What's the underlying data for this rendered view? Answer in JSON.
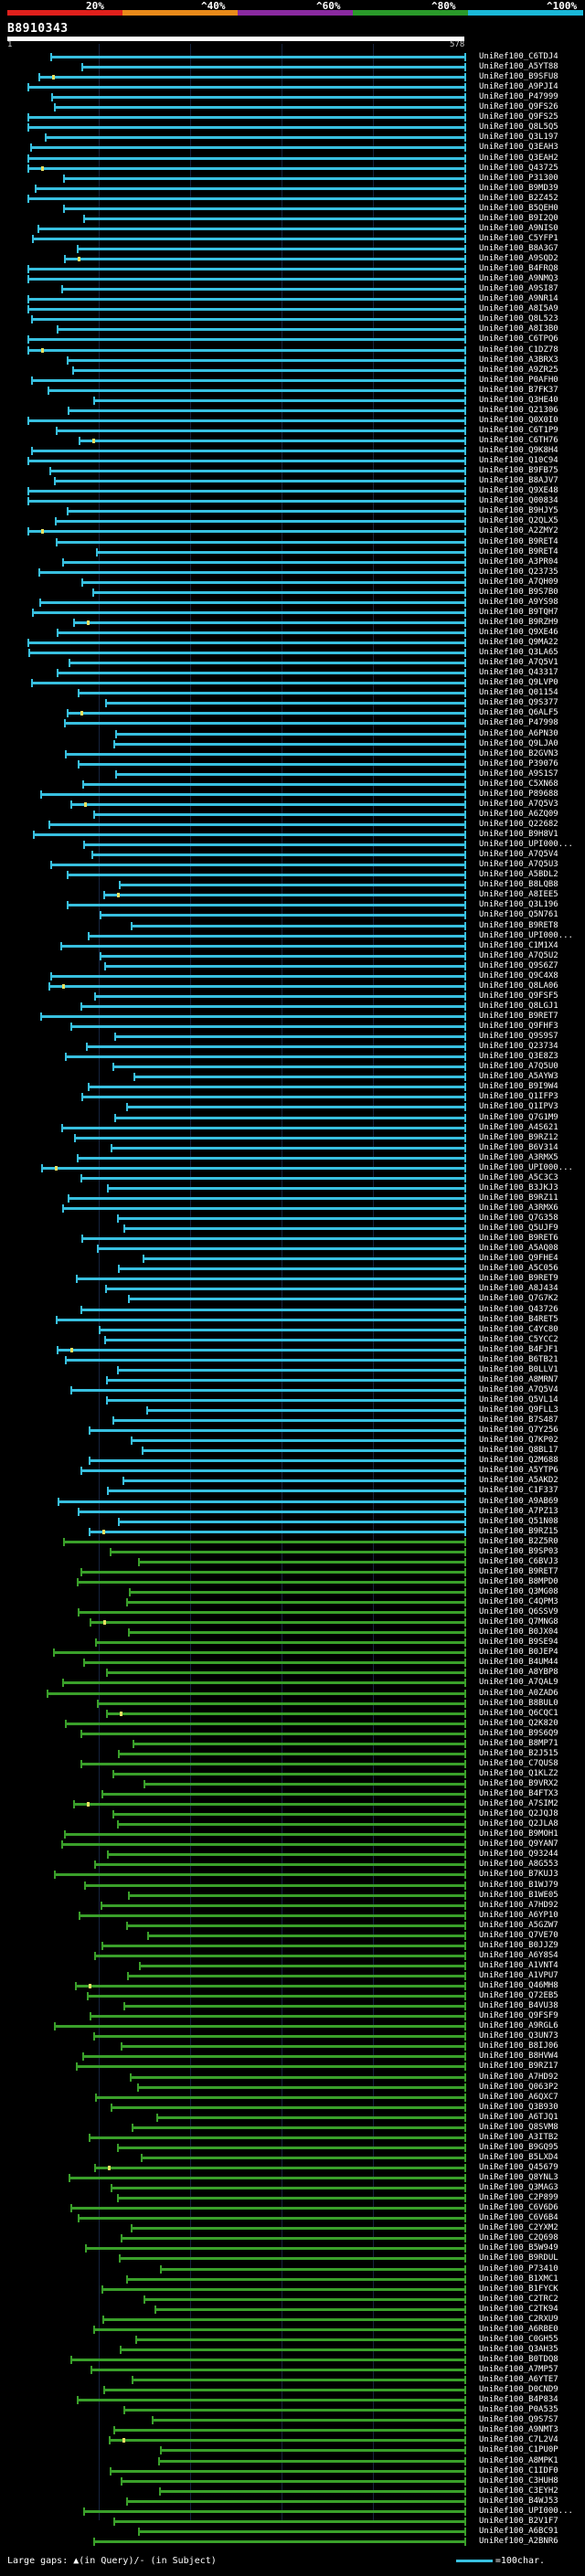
{
  "scale": {
    "ticks": [
      "20%",
      "^40%",
      "^60%",
      "^80%",
      "^100%"
    ],
    "colors": [
      "#e0201c",
      "#e88a1a",
      "#8a2aa0",
      "#2a9a2a",
      "#1ab8d8"
    ]
  },
  "query": {
    "id": "B8910343",
    "start": "1",
    "end": "578"
  },
  "colors": {
    "high": "#38c0e0",
    "mid": "#3aa02a",
    "gap": "#e8e060"
  },
  "hits": [
    "UniRef100_C6TDJ4",
    "UniRef100_A5YT88",
    "UniRef100_B9SFU8",
    "UniRef100_A9PJI4",
    "UniRef100_P47999",
    "UniRef100_Q9FS26",
    "UniRef100_Q9FS25",
    "UniRef100_Q8L5Q5",
    "UniRef100_Q3L197",
    "UniRef100_Q3EAH3",
    "UniRef100_Q3EAH2",
    "UniRef100_Q43725",
    "UniRef100_P31300",
    "UniRef100_B9MD39",
    "UniRef100_B2Z452",
    "UniRef100_B5QEH0",
    "UniRef100_B9I2Q0",
    "UniRef100_A9NIS0",
    "UniRef100_C5YFP1",
    "UniRef100_B8A3G7",
    "UniRef100_A9SQD2",
    "UniRef100_B4FRQ8",
    "UniRef100_A9NMQ3",
    "UniRef100_A9SI87",
    "UniRef100_A9NR14",
    "UniRef100_A8I5A9",
    "UniRef100_Q8L523",
    "UniRef100_A8I3B0",
    "UniRef100_C6TPQ6",
    "UniRef100_C1DZ78",
    "UniRef100_A3BRX3",
    "UniRef100_A9ZR25",
    "UniRef100_P0AFH0",
    "UniRef100_B7FK37",
    "UniRef100_Q3HE40",
    "UniRef100_Q21306",
    "UniRef100_Q0X0I0",
    "UniRef100_C6T1P9",
    "UniRef100_C6TH76",
    "UniRef100_Q9K8H4",
    "UniRef100_Q10C94",
    "UniRef100_B9FB75",
    "UniRef100_B8AJV7",
    "UniRef100_Q9XE48",
    "UniRef100_Q00834",
    "UniRef100_B9HJY5",
    "UniRef100_Q2QLX5",
    "UniRef100_A2ZMY2",
    "UniRef100_B9RET4",
    "UniRef100_B9RET4",
    "UniRef100_A3PR04",
    "UniRef100_Q23735",
    "UniRef100_A7QH09",
    "UniRef100_B9S7B0",
    "UniRef100_A9YS98",
    "UniRef100_B9TQH7",
    "UniRef100_B9RZH9",
    "UniRef100_Q9XE46",
    "UniRef100_Q9MA22",
    "UniRef100_Q3LA65",
    "UniRef100_A7Q5V1",
    "UniRef100_Q43317",
    "UniRef100_Q9LVP0",
    "UniRef100_Q01154",
    "UniRef100_Q9S377",
    "UniRef100_Q6ALF5",
    "UniRef100_P47998",
    "UniRef100_A6PN30",
    "UniRef100_Q9LJA0",
    "UniRef100_B2GVN3",
    "UniRef100_P39076",
    "UniRef100_A9S1S7",
    "UniRef100_C5XN68",
    "UniRef100_P89688",
    "UniRef100_A7Q5V3",
    "UniRef100_A6ZQ09",
    "UniRef100_Q22682",
    "UniRef100_B9H8V1",
    "UniRef100_UPI000...",
    "UniRef100_A7Q5V4",
    "UniRef100_A7Q5U3",
    "UniRef100_A5BDL2",
    "UniRef100_B8LQB8",
    "UniRef100_A8IEE5",
    "UniRef100_Q3L196",
    "UniRef100_Q5N761",
    "UniRef100_B9RET8",
    "UniRef100_UPI000...",
    "UniRef100_C1M1X4",
    "UniRef100_A7Q5U2",
    "UniRef100_Q9S6Z7",
    "UniRef100_Q9C4X8",
    "UniRef100_Q8LA06",
    "UniRef100_Q9FSF5",
    "UniRef100_Q8LGJ1",
    "UniRef100_B9RET7",
    "UniRef100_Q9FHF3",
    "UniRef100_Q9S9S7",
    "UniRef100_Q23734",
    "UniRef100_Q3E8Z3",
    "UniRef100_A7Q5U0",
    "UniRef100_A5AYW3",
    "UniRef100_B9I9W4",
    "UniRef100_Q1IFP3",
    "UniRef100_Q1IPV3",
    "UniRef100_Q7G1M9",
    "UniRef100_A4S621",
    "UniRef100_B9RZ12",
    "UniRef100_B6V314",
    "UniRef100_A3RMX5",
    "UniRef100_UPI000...",
    "UniRef100_A5C3C3",
    "UniRef100_B3JKJ3",
    "UniRef100_B9RZ11",
    "UniRef100_A3RMX6",
    "UniRef100_Q7G358",
    "UniRef100_Q5UJF9",
    "UniRef100_B9RET6",
    "UniRef100_A5AQ08",
    "UniRef100_Q9FHE4",
    "UniRef100_A5C056",
    "UniRef100_B9RET9",
    "UniRef100_A8J434",
    "UniRef100_Q7G7K2",
    "UniRef100_Q43726",
    "UniRef100_B4RET5",
    "UniRef100_C4YC80",
    "UniRef100_C5YCC2",
    "UniRef100_B4FJF1",
    "UniRef100_B6TB21",
    "UniRef100_B0LLV1",
    "UniRef100_A8MRN7",
    "UniRef100_A7Q5V4",
    "UniRef100_Q5VL14",
    "UniRef100_Q9FLL3",
    "UniRef100_B7S487",
    "UniRef100_Q7Y256",
    "UniRef100_Q7KP02",
    "UniRef100_Q8BL17",
    "UniRef100_Q2M688",
    "UniRef100_A5YTP6",
    "UniRef100_A5AKD2",
    "UniRef100_C1F337",
    "UniRef100_A9AB69",
    "UniRef100_A7PZ13",
    "UniRef100_Q51N08",
    "UniRef100_B9RZ15",
    "UniRef100_B2Z5R0",
    "UniRef100_B9SP03",
    "UniRef100_C6BVJ3",
    "UniRef100_B9RET7",
    "UniRef100_B8MPD0",
    "UniRef100_Q3MG08",
    "UniRef100_C4QPM3",
    "UniRef100_Q6SSV9",
    "UniRef100_Q7MNG8",
    "UniRef100_B0JX04",
    "UniRef100_B9SE94",
    "UniRef100_B0JEP4",
    "UniRef100_B4UM44",
    "UniRef100_A8YBP8",
    "UniRef100_A7QAL9",
    "UniRef100_A0ZAD6",
    "UniRef100_B8BUL0",
    "UniRef100_Q6CQC1",
    "UniRef100_Q2K820",
    "UniRef100_B9S6Q9",
    "UniRef100_B8MP71",
    "UniRef100_B2J515",
    "UniRef100_C7QUS8",
    "UniRef100_Q1KLZ2",
    "UniRef100_B9VRX2",
    "UniRef100_B4FTX3",
    "UniRef100_A7SIM2",
    "UniRef100_Q2JQJ8",
    "UniRef100_Q2JLA8",
    "UniRef100_B9MOH1",
    "UniRef100_Q9YAN7",
    "UniRef100_Q93244",
    "UniRef100_A8G553",
    "UniRef100_B7KUJ3",
    "UniRef100_B1WJ79",
    "UniRef100_B1WE05",
    "UniRef100_A7HD92",
    "UniRef100_A6YP10",
    "UniRef100_A5GZW7",
    "UniRef100_Q7VE70",
    "UniRef100_B0JJZ9",
    "UniRef100_A6Y8S4",
    "UniRef100_A1VNT4",
    "UniRef100_A1VPU7",
    "UniRef100_Q46MH8",
    "UniRef100_Q72EB5",
    "UniRef100_B4VU38",
    "UniRef100_Q9FSF9",
    "UniRef100_A9RGL6",
    "UniRef100_Q3UN73",
    "UniRef100_B8IJ06",
    "UniRef100_B8HVW4",
    "UniRef100_B9RZ17",
    "UniRef100_A7HD92",
    "UniRef100_Q063P2",
    "UniRef100_A6QXC7",
    "UniRef100_Q3B930",
    "UniRef100_A6TJQ1",
    "UniRef100_Q8SVM8",
    "UniRef100_A3ITB2",
    "UniRef100_B9GQ95",
    "UniRef100_B5LXD4",
    "UniRef100_Q45679",
    "UniRef100_Q8YNL3",
    "UniRef100_Q3MAG3",
    "UniRef100_C2P899",
    "UniRef100_C6V6D6",
    "UniRef100_C6V6B4",
    "UniRef100_C2YXM2",
    "UniRef100_C2Q698",
    "UniRef100_B5W949",
    "UniRef100_B9RDUL",
    "UniRef100_P73410",
    "UniRef100_B1XMC1",
    "UniRef100_B1FYCK",
    "UniRef100_C2TRC2",
    "UniRef100_C2TK94",
    "UniRef100_C2RXU9",
    "UniRef100_A6RBE0",
    "UniRef100_C0GH55",
    "UniRef100_Q3AH35",
    "UniRef100_B0TDQ8",
    "UniRef100_A7MP57",
    "UniRef100_A6YTE7",
    "UniRef100_D0CND9",
    "UniRef100_B4P834",
    "UniRef100_P0A535",
    "UniRef100_Q9S7S7",
    "UniRef100_A9NMT3",
    "UniRef100_C7L2V4",
    "UniRef100_C1PU0P",
    "UniRef100_A8MPK1",
    "UniRef100_C1IDF0",
    "UniRef100_C3HUH8",
    "UniRef100_C3EYH2",
    "UniRef100_B4WJ53",
    "UniRef100_UPI000...",
    "UniRef100_B2V1F7",
    "UniRef100_A6BC91",
    "UniRef100_A2BNR6"
  ],
  "legend": {
    "text": "Large gaps: ▲(in Query)/- (in Subject)",
    "swatch_label": "=100char."
  }
}
